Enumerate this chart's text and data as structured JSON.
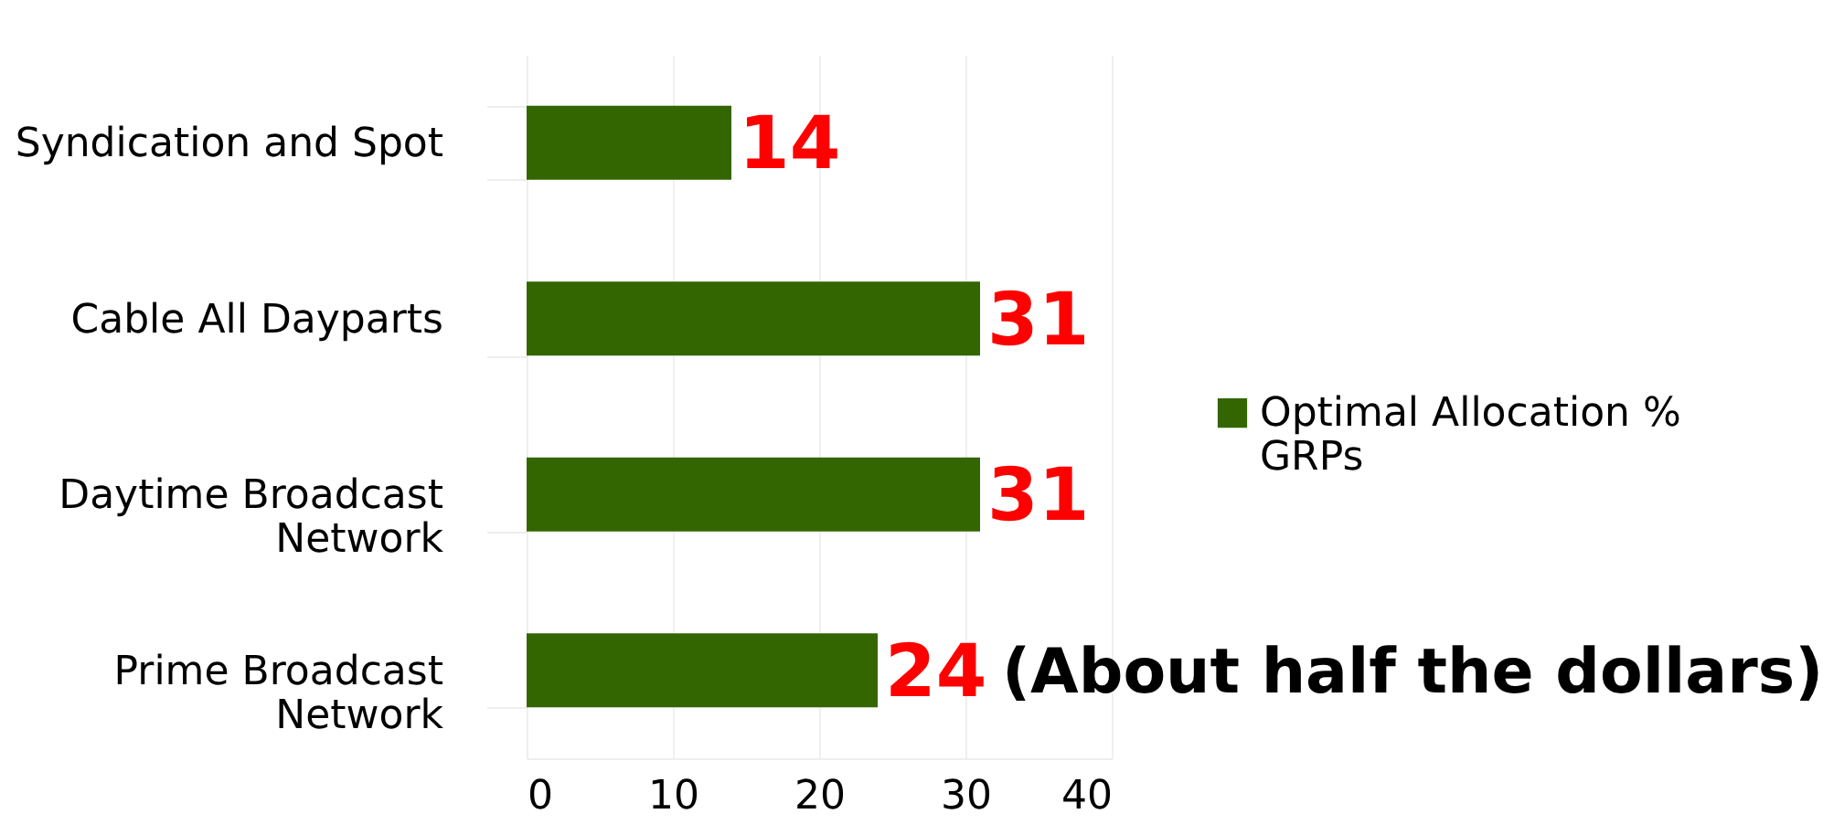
{
  "chart_data": {
    "type": "bar",
    "orientation": "horizontal",
    "categories": [
      "Syndication and Spot",
      "Cable All Dayparts",
      "Daytime Broadcast Network",
      "Prime Broadcast Network"
    ],
    "series": [
      {
        "name": "Optimal Allocation % GRPs",
        "color": "#336600",
        "values": [
          14,
          31,
          31,
          24
        ]
      }
    ],
    "xlim": [
      0,
      40
    ],
    "xticks": [
      0,
      10,
      20,
      30,
      40
    ],
    "grid": "x",
    "legend": "right",
    "data_labels": true,
    "annotations": [
      {
        "text": "(About half the dollars)",
        "x": 24,
        "y": "Prime Broadcast Network"
      }
    ]
  }
}
